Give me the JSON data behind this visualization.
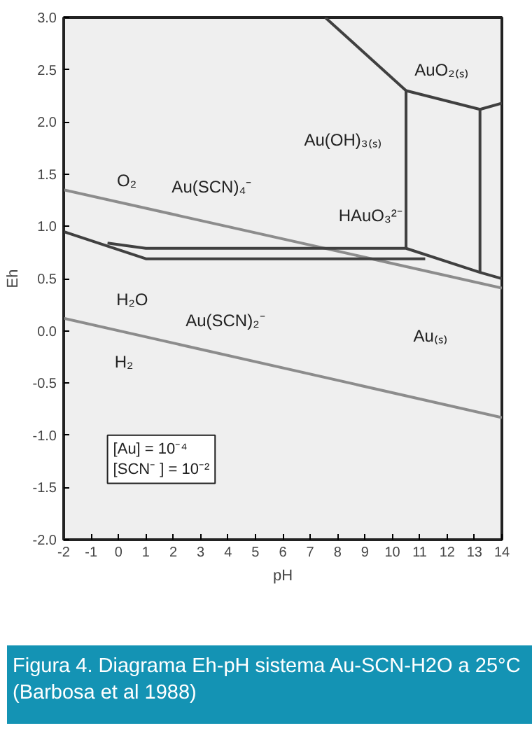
{
  "chart_data": {
    "type": "line",
    "title": "Figura 4. Diagrama Eh-pH sistema Au-SCN-H2O a 25°C (Barbosa et al 1988)",
    "xlabel": "pH",
    "ylabel": "Eh",
    "xlim": [
      -2,
      14
    ],
    "ylim": [
      -2,
      3
    ],
    "xticks": [
      -2,
      -1,
      0,
      1,
      2,
      3,
      4,
      5,
      6,
      7,
      8,
      9,
      10,
      11,
      12,
      13,
      14
    ],
    "yticks": [
      {
        "value": -2,
        "label": "-2.0"
      },
      {
        "value": -1.5,
        "label": "-1.5"
      },
      {
        "value": -1,
        "label": "-1.0"
      },
      {
        "value": -0.5,
        "label": "-0.5"
      },
      {
        "value": 0,
        "label": "0.0"
      },
      {
        "value": 0.5,
        "label": "0.5"
      },
      {
        "value": 1,
        "label": "1.0"
      },
      {
        "value": 1.5,
        "label": "1.5"
      },
      {
        "value": 2,
        "label": "2.0"
      },
      {
        "value": 2.5,
        "label": "2.5"
      },
      {
        "value": 3,
        "label": "3.0"
      }
    ],
    "grid": false,
    "marker": "none",
    "line_style": "solid",
    "series": [
      {
        "color": "#8c8c8c",
        "x": [
          -2,
          14
        ],
        "values": [
          1.35,
          0.41
        ]
      },
      {
        "color": "#8c8c8c",
        "x": [
          -2,
          14
        ],
        "values": [
          0.12,
          -0.83
        ]
      },
      {
        "color": "#404040",
        "x": [
          7.55,
          10.5,
          10.5
        ],
        "values": [
          3.0,
          2.3,
          0.79
        ]
      },
      {
        "color": "#404040",
        "x": [
          10.5,
          13.2,
          13.2
        ],
        "values": [
          2.3,
          2.12,
          0.56
        ]
      },
      {
        "color": "#404040",
        "x": [
          13.2,
          14
        ],
        "values": [
          2.12,
          2.18
        ]
      },
      {
        "color": "#404040",
        "x": [
          -0.4,
          1.0,
          10.5,
          13.2,
          14
        ],
        "values": [
          0.84,
          0.79,
          0.79,
          0.56,
          0.5
        ]
      },
      {
        "color": "#404040",
        "x": [
          -2,
          1.0,
          11.2
        ],
        "values": [
          0.95,
          0.69,
          0.69
        ]
      }
    ],
    "annotations": [
      "O₂",
      "Au(SCN)₄⁻",
      "AuO₂₍ₛ₎",
      "Au(OH)₃₍ₛ₎",
      "HAuO₃²⁻",
      "H₂O",
      "Au(SCN)₂⁻",
      "Au₍ₛ₎",
      "H₂",
      "[Au]    = 10⁻⁴\n[SCN⁻ ] = 10⁻²"
    ]
  }
}
